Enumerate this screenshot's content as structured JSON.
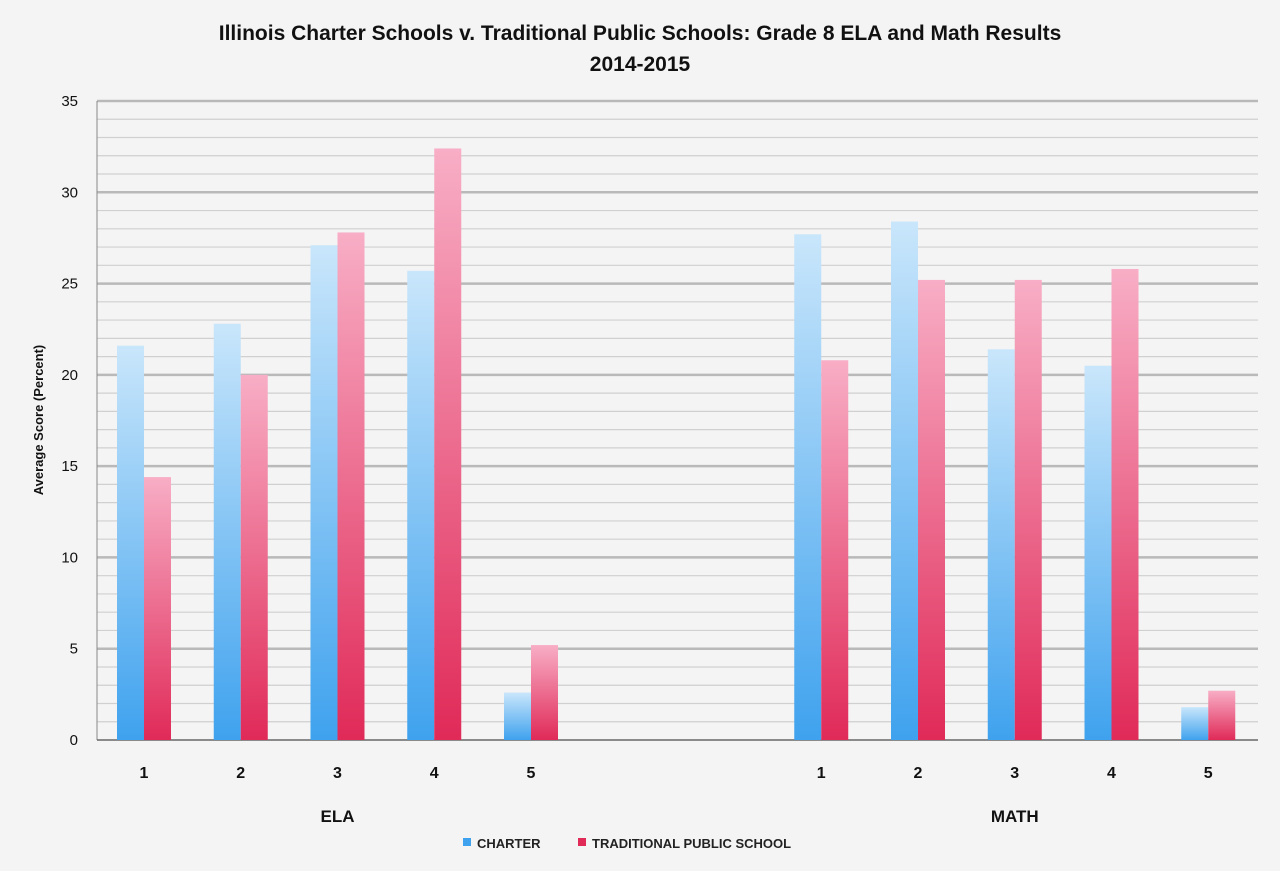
{
  "chart_data": {
    "type": "bar",
    "title_line1": "Illinois Charter Schools v. Traditional Public Schools: Grade 8 ELA and Math Results",
    "title_line2": "2014-2015",
    "ylabel": "Average Score (Percent)",
    "xlabel": "",
    "ylim": [
      0,
      35
    ],
    "y_ticks": [
      0,
      5,
      10,
      15,
      20,
      25,
      30,
      35
    ],
    "minor_gridline_step": 1,
    "grid": true,
    "legend_position": "bottom-center",
    "categories": [
      "1",
      "2",
      "3",
      "4",
      "5",
      "",
      "",
      "1",
      "2",
      "3",
      "4",
      "5"
    ],
    "groups": [
      {
        "label": "ELA",
        "categories": [
          "1",
          "2",
          "3",
          "4",
          "5"
        ]
      },
      {
        "label": "MATH",
        "categories": [
          "1",
          "2",
          "3",
          "4",
          "5"
        ]
      }
    ],
    "series": [
      {
        "name": "CHARTER",
        "color": "#3fa2ee",
        "color_light": "#c9e6fb",
        "values": [
          21.6,
          22.8,
          27.1,
          25.7,
          2.6,
          null,
          null,
          27.7,
          28.4,
          21.4,
          20.5,
          1.8
        ]
      },
      {
        "name": "TRADITIONAL PUBLIC SCHOOL",
        "color": "#e02a58",
        "color_light": "#f8aec6",
        "values": [
          14.4,
          20.0,
          27.8,
          32.4,
          5.2,
          null,
          null,
          20.8,
          25.2,
          25.2,
          25.8,
          2.7
        ]
      }
    ]
  }
}
